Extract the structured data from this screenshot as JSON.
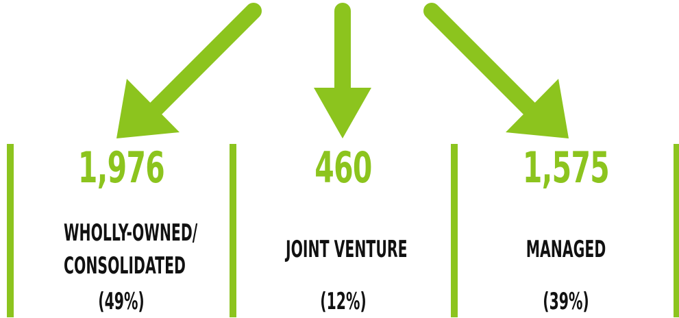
{
  "colors": {
    "accent": "#8cc41e",
    "text": "#111111"
  },
  "categories": [
    {
      "value": "1,976",
      "label_lines": [
        "WHOLLY-OWNED/",
        "CONSOLIDATED"
      ],
      "percent": "(49%)"
    },
    {
      "value": "460",
      "label_lines": [
        "JOINT VENTURE"
      ],
      "percent": "(12%)"
    },
    {
      "value": "1,575",
      "label_lines": [
        "MANAGED"
      ],
      "percent": "(39%)"
    }
  ]
}
